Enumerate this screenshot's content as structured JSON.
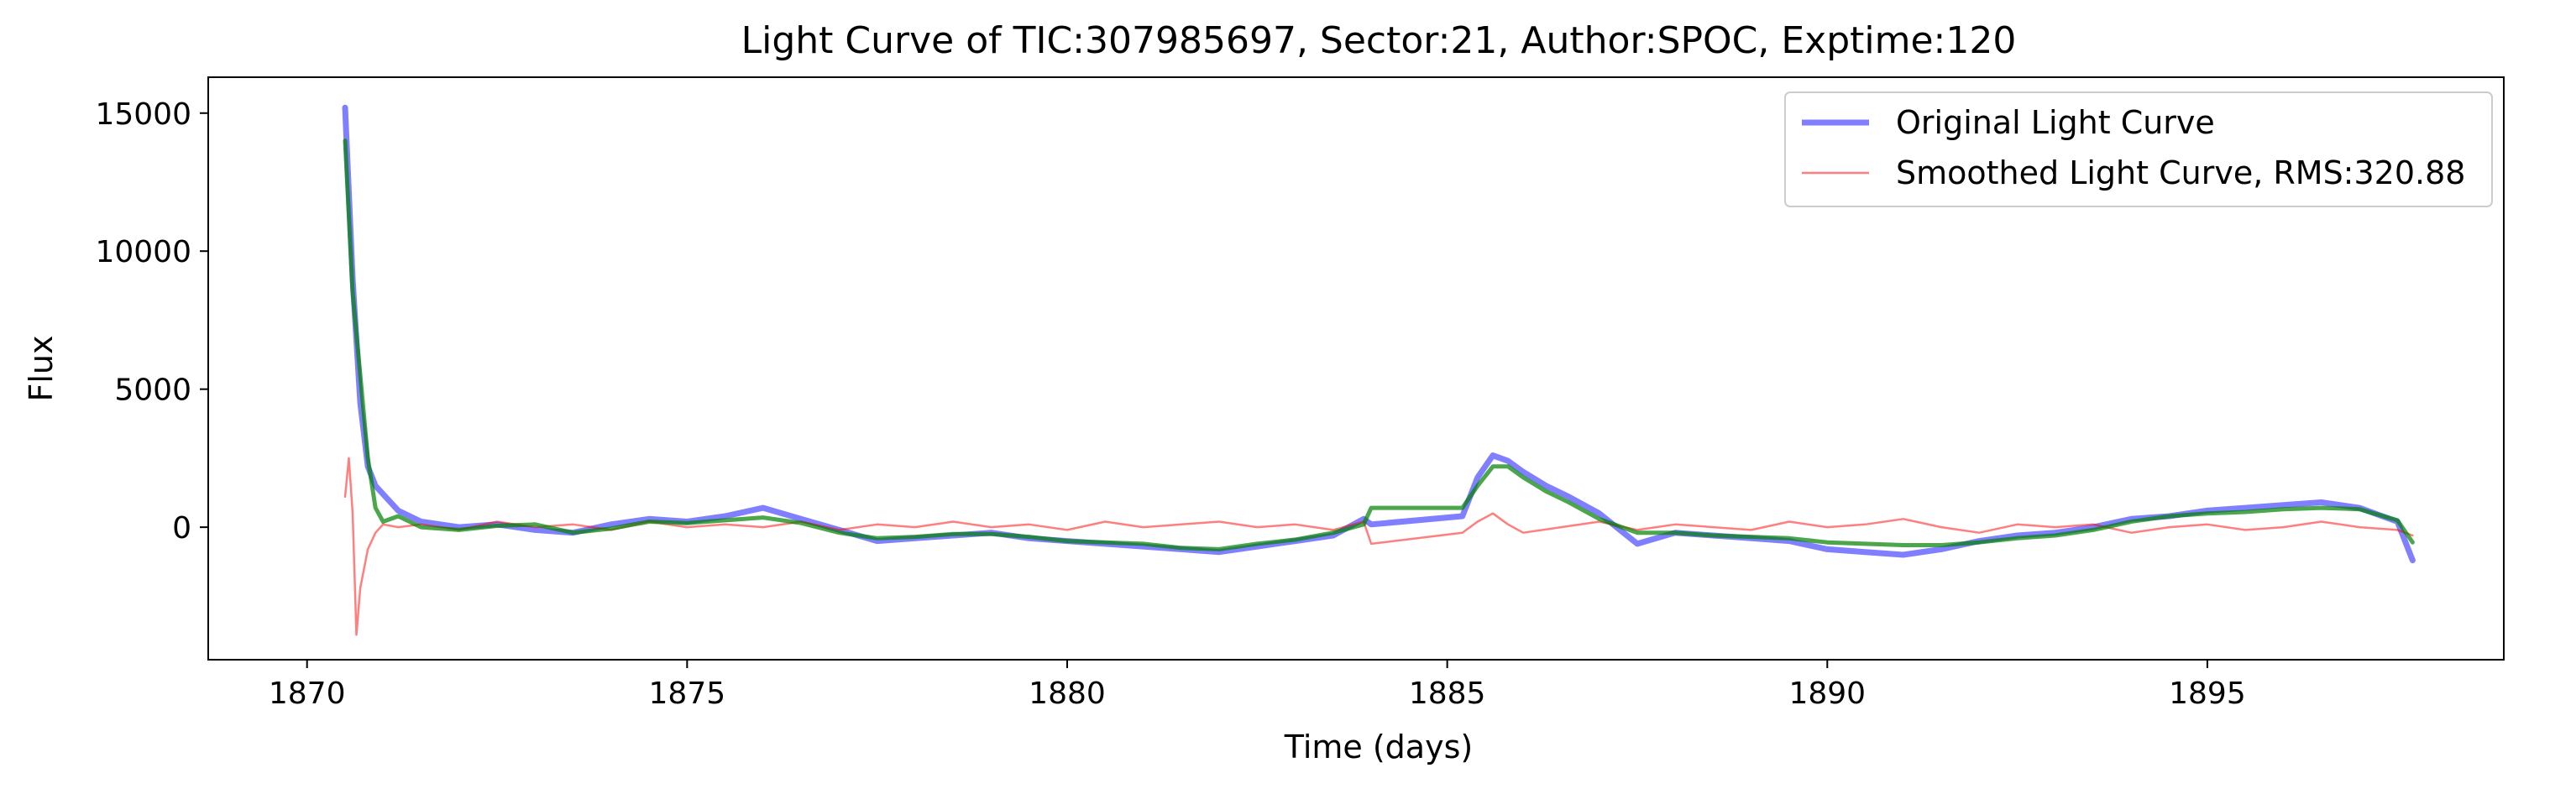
{
  "chart_data": {
    "type": "line",
    "title": "Light Curve of TIC:307985697, Sector:21, Author:SPOC, Exptime:120",
    "xlabel": "Time (days)",
    "ylabel": "Flux",
    "xlim": [
      1868.7,
      1898.9
    ],
    "ylim": [
      -4800,
      16300
    ],
    "xticks": [
      1870,
      1875,
      1880,
      1885,
      1890,
      1895
    ],
    "yticks": [
      0,
      5000,
      10000,
      15000
    ],
    "grid": false,
    "legend_position": "top-right",
    "colors": {
      "original": "#0000ff",
      "smoothed": "#ff0000",
      "trend": "#008000"
    },
    "series": [
      {
        "name": "Original Light Curve",
        "role": "original",
        "x": [
          1870.5,
          1870.6,
          1870.7,
          1870.8,
          1870.9,
          1871.0,
          1871.2,
          1871.5,
          1872.0,
          1872.5,
          1873.0,
          1873.5,
          1874.0,
          1874.5,
          1875.0,
          1875.5,
          1876.0,
          1876.5,
          1877.0,
          1877.5,
          1878.0,
          1878.5,
          1879.0,
          1879.5,
          1880.0,
          1880.5,
          1881.0,
          1881.5,
          1882.0,
          1882.5,
          1883.0,
          1883.5,
          1883.9,
          1884.0,
          1885.2,
          1885.4,
          1885.6,
          1885.8,
          1886.0,
          1886.3,
          1886.6,
          1887.0,
          1887.5,
          1888.0,
          1888.5,
          1889.0,
          1889.5,
          1890.0,
          1890.5,
          1891.0,
          1891.5,
          1892.0,
          1892.5,
          1893.0,
          1893.5,
          1894.0,
          1894.5,
          1895.0,
          1895.5,
          1896.0,
          1896.5,
          1897.0,
          1897.5,
          1897.7
        ],
        "y": [
          15200,
          9000,
          4500,
          2200,
          1500,
          1200,
          600,
          200,
          0,
          100,
          -100,
          -200,
          100,
          300,
          200,
          400,
          700,
          300,
          -100,
          -500,
          -400,
          -300,
          -200,
          -400,
          -500,
          -600,
          -700,
          -800,
          -900,
          -700,
          -500,
          -300,
          300,
          100,
          400,
          1800,
          2600,
          2400,
          2000,
          1500,
          1100,
          500,
          -600,
          -200,
          -300,
          -400,
          -500,
          -800,
          -900,
          -1000,
          -800,
          -500,
          -300,
          -200,
          0,
          300,
          400,
          600,
          700,
          800,
          900,
          700,
          200,
          -1200
        ]
      },
      {
        "name": "Smoothed Light Curve, RMS:320.88",
        "role": "smoothed",
        "x": [
          1870.5,
          1870.55,
          1870.6,
          1870.65,
          1870.7,
          1870.8,
          1870.9,
          1871.0,
          1871.2,
          1871.5,
          1872.0,
          1872.5,
          1873.0,
          1873.5,
          1874.0,
          1874.5,
          1875.0,
          1875.5,
          1876.0,
          1876.5,
          1877.0,
          1877.5,
          1878.0,
          1878.5,
          1879.0,
          1879.5,
          1880.0,
          1880.5,
          1881.0,
          1881.5,
          1882.0,
          1882.5,
          1883.0,
          1883.5,
          1883.9,
          1884.0,
          1885.2,
          1885.4,
          1885.6,
          1885.8,
          1886.0,
          1886.5,
          1887.0,
          1887.5,
          1888.0,
          1888.5,
          1889.0,
          1889.5,
          1890.0,
          1890.5,
          1891.0,
          1891.5,
          1892.0,
          1892.5,
          1893.0,
          1893.5,
          1894.0,
          1894.5,
          1895.0,
          1895.5,
          1896.0,
          1896.5,
          1897.0,
          1897.5,
          1897.7
        ],
        "y": [
          1100,
          2500,
          500,
          -3900,
          -2200,
          -800,
          -200,
          100,
          0,
          100,
          -100,
          200,
          0,
          100,
          -100,
          200,
          0,
          100,
          0,
          200,
          -100,
          100,
          0,
          200,
          0,
          100,
          -100,
          200,
          0,
          100,
          200,
          0,
          100,
          -100,
          200,
          -600,
          -200,
          200,
          500,
          100,
          -200,
          0,
          200,
          -100,
          100,
          0,
          -100,
          200,
          0,
          100,
          300,
          0,
          -200,
          100,
          0,
          100,
          -200,
          0,
          100,
          -100,
          0,
          200,
          0,
          -100,
          -300
        ]
      },
      {
        "name": "",
        "role": "trend",
        "x": [
          1870.5,
          1870.6,
          1870.7,
          1870.8,
          1870.9,
          1871.0,
          1871.2,
          1871.5,
          1872.0,
          1872.5,
          1873.0,
          1873.5,
          1874.0,
          1874.5,
          1875.0,
          1875.5,
          1876.0,
          1876.5,
          1877.0,
          1877.5,
          1878.0,
          1878.5,
          1879.0,
          1879.5,
          1880.0,
          1880.5,
          1881.0,
          1881.5,
          1882.0,
          1882.5,
          1883.0,
          1883.5,
          1883.9,
          1884.0,
          1885.2,
          1885.4,
          1885.6,
          1885.8,
          1886.0,
          1886.3,
          1886.6,
          1887.0,
          1887.5,
          1888.0,
          1888.5,
          1889.0,
          1889.5,
          1890.0,
          1890.5,
          1891.0,
          1891.5,
          1892.0,
          1892.5,
          1893.0,
          1893.5,
          1894.0,
          1894.5,
          1895.0,
          1895.5,
          1896.0,
          1896.5,
          1897.0,
          1897.5,
          1897.7
        ],
        "y": [
          14000,
          8500,
          5500,
          2500,
          700,
          200,
          400,
          0,
          -100,
          50,
          100,
          -200,
          -50,
          200,
          150,
          250,
          350,
          150,
          -200,
          -400,
          -350,
          -250,
          -250,
          -350,
          -500,
          -550,
          -600,
          -750,
          -800,
          -600,
          -450,
          -200,
          100,
          700,
          700,
          1500,
          2200,
          2200,
          1800,
          1300,
          900,
          300,
          -200,
          -200,
          -300,
          -350,
          -400,
          -550,
          -600,
          -650,
          -650,
          -550,
          -400,
          -300,
          -100,
          200,
          400,
          500,
          550,
          650,
          700,
          650,
          250,
          -550
        ]
      }
    ]
  }
}
